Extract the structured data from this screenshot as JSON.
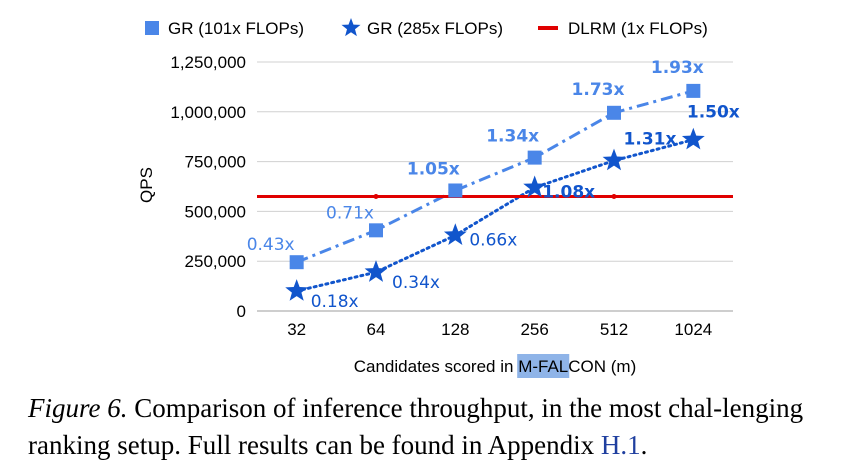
{
  "chart_data": {
    "type": "line",
    "categories": [
      "32",
      "64",
      "128",
      "256",
      "512",
      "1024"
    ],
    "ylabel": "QPS",
    "xlabel_parts": {
      "pre": "Candidates scored in ",
      "highlight": "M-FAL",
      "post": "CON (m)"
    },
    "ylim": [
      0,
      1250000
    ],
    "yticks": [
      "0",
      "250,000",
      "500,000",
      "750,000",
      "1,000,000",
      "1,250,000"
    ],
    "ytick_values": [
      0,
      250000,
      500000,
      750000,
      1000000,
      1250000
    ],
    "grid": true,
    "legend_position": "top",
    "series": [
      {
        "name": "GR (101x FLOPs)",
        "color": "#4a86e8",
        "marker": "square",
        "line_style": "dash-dot",
        "values": [
          245000,
          405000,
          605000,
          770000,
          995000,
          1105000
        ],
        "labels": [
          "0.43x",
          "0.71x",
          "1.05x",
          "1.34x",
          "1.73x",
          "1.93x"
        ],
        "label_bold": [
          false,
          false,
          true,
          true,
          true,
          true
        ]
      },
      {
        "name": "GR (285x FLOPs)",
        "color": "#1155cc",
        "marker": "star",
        "line_style": "dotted",
        "values": [
          100000,
          195000,
          380000,
          620000,
          755000,
          860000
        ],
        "labels": [
          "0.18x",
          "0.34x",
          "0.66x",
          "1.08x",
          "1.31x",
          "1.50x"
        ],
        "label_bold": [
          false,
          false,
          false,
          true,
          true,
          true
        ]
      },
      {
        "name": "DLRM (1x FLOPs)",
        "color": "#e00000",
        "marker": "none",
        "line_style": "solid",
        "values": [
          575000,
          575000,
          575000,
          575000,
          575000,
          575000
        ]
      }
    ]
  },
  "caption": {
    "figure_label": "Figure 6.",
    "text": " Comparison of inference throughput, in the most chal-lenging ranking setup. Full results can be found in Appendix ",
    "ref": "H.1",
    "end": "."
  }
}
